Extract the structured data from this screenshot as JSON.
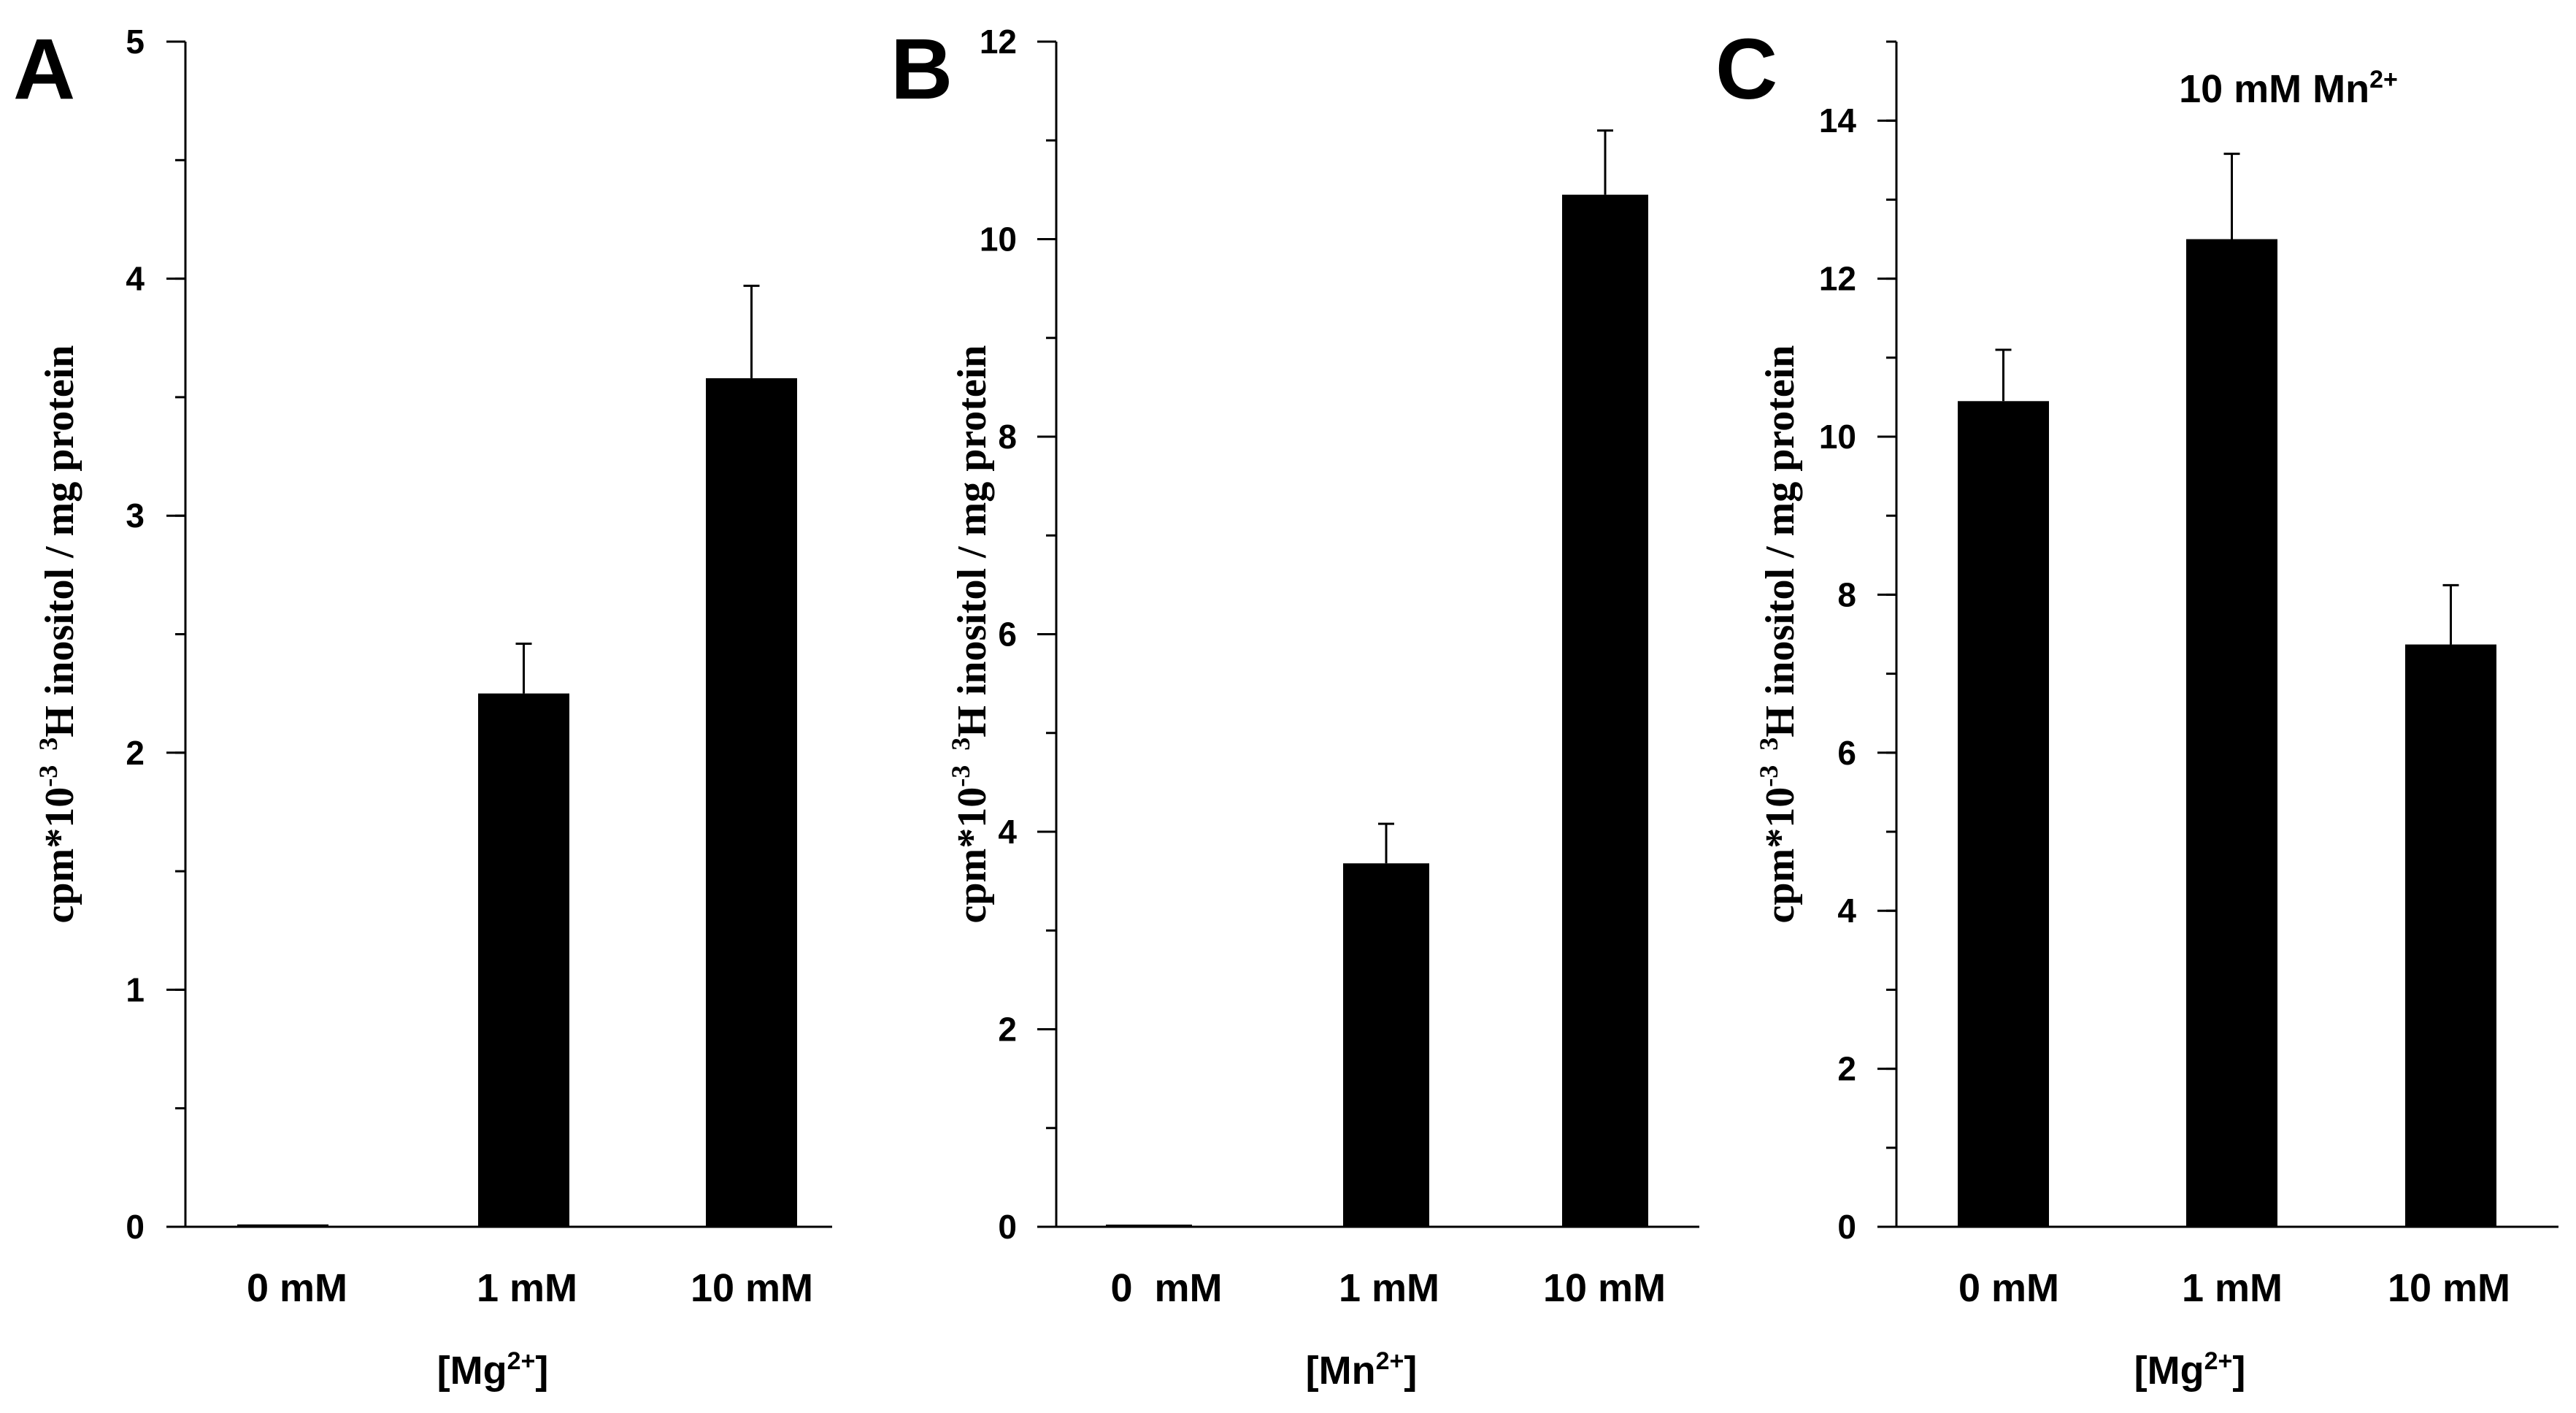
{
  "colors": {
    "bar": "#000000",
    "axis": "#000000",
    "background": "#ffffff"
  },
  "chart_data": [
    {
      "panel_label": "A",
      "type": "bar",
      "title": "",
      "ylabel_main": "cpm*10",
      "ylabel_exp": "-3",
      "ylabel_iso": "3",
      "ylabel_rest": "H inositol / mg protein",
      "xlabel_prefix": "[Mg",
      "xlabel_sup": "2+",
      "xlabel_suffix": "]",
      "categories": [
        "0 mM",
        "1 mM",
        "10 mM"
      ],
      "values": [
        0.01,
        2.25,
        3.58
      ],
      "errors": [
        0,
        0.21,
        0.39
      ],
      "ylim": [
        0,
        5
      ],
      "major_ticks": [
        0,
        1,
        2,
        3,
        4,
        5
      ],
      "minor_step": 0.5
    },
    {
      "panel_label": "B",
      "type": "bar",
      "title": "",
      "ylabel_main": "cpm*10",
      "ylabel_exp": "-3",
      "ylabel_iso": "3",
      "ylabel_rest": "H inositol / mg protein",
      "xlabel_prefix": "[Mn",
      "xlabel_sup": "2+",
      "xlabel_suffix": "]",
      "categories": [
        "0  mM",
        "1 mM",
        "10 mM"
      ],
      "values": [
        0.02,
        3.68,
        10.45
      ],
      "errors": [
        0,
        0.4,
        0.65
      ],
      "ylim": [
        0,
        12
      ],
      "major_ticks": [
        0,
        2,
        4,
        6,
        8,
        10,
        12
      ],
      "minor_step": 1
    },
    {
      "panel_label": "C",
      "type": "bar",
      "title": "10 mM Mn",
      "title_sup": "2+",
      "ylabel_main": "cpm*10",
      "ylabel_exp": "-3",
      "ylabel_iso": "3",
      "ylabel_rest": "H inositol / mg protein",
      "xlabel_prefix": "[Mg",
      "xlabel_sup": "2+",
      "xlabel_suffix": "]",
      "categories": [
        "0 mM",
        "1 mM",
        "10 mM"
      ],
      "values": [
        10.45,
        12.5,
        7.37
      ],
      "errors": [
        0.65,
        1.08,
        0.75
      ],
      "ylim": [
        0,
        15
      ],
      "major_ticks": [
        0,
        2,
        4,
        6,
        8,
        10,
        12,
        14
      ],
      "minor_step": 1
    }
  ]
}
